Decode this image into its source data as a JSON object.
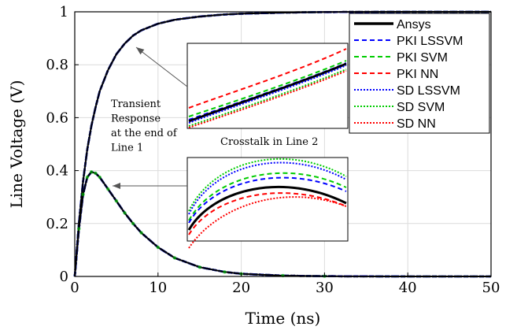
{
  "chart_data": {
    "type": "line",
    "title": "",
    "xlabel": "Time (ns)",
    "ylabel": "Line Voltage (V)",
    "xlim": [
      0,
      50
    ],
    "ylim": [
      0,
      1
    ],
    "xticks": [
      "0",
      "10",
      "20",
      "30",
      "40",
      "50"
    ],
    "yticks": [
      "0",
      "0.2",
      "0.4",
      "0.6",
      "0.8",
      "1"
    ],
    "grid": true,
    "legend_position": "top-right",
    "series": [
      {
        "name": "Ansys",
        "color": "#000000",
        "style": "solid",
        "width": 3
      },
      {
        "name": "PKI LSSVM",
        "color": "#0000ff",
        "style": "dashed",
        "width": 1.5
      },
      {
        "name": "PKI SVM",
        "color": "#00cc00",
        "style": "dashed",
        "width": 1.5
      },
      {
        "name": "PKI NN",
        "color": "#ff0000",
        "style": "dashed",
        "width": 1.5
      },
      {
        "name": "SD LSSVM",
        "color": "#0000ff",
        "style": "dotted",
        "width": 1.5
      },
      {
        "name": "SD SVM",
        "color": "#00cc00",
        "style": "dotted",
        "width": 1.5
      },
      {
        "name": "SD NN",
        "color": "#ff0000",
        "style": "dotted",
        "width": 1.5
      }
    ],
    "curves": {
      "line1_x": [
        0,
        0.5,
        1,
        1.5,
        2,
        2.5,
        3,
        4,
        5,
        6,
        7,
        8,
        10,
        12,
        15,
        18,
        20,
        25,
        30,
        40,
        50
      ],
      "line1_y": [
        0,
        0.2,
        0.36,
        0.48,
        0.57,
        0.64,
        0.7,
        0.78,
        0.84,
        0.88,
        0.91,
        0.93,
        0.955,
        0.97,
        0.982,
        0.99,
        0.993,
        0.997,
        0.999,
        1.0,
        1.0
      ],
      "line2_x": [
        0,
        0.5,
        1,
        1.5,
        2,
        2.5,
        3,
        4,
        5,
        6,
        7,
        8,
        10,
        12,
        15,
        18,
        20,
        25,
        30,
        40,
        50
      ],
      "line2_y": [
        0,
        0.18,
        0.31,
        0.375,
        0.395,
        0.39,
        0.375,
        0.33,
        0.285,
        0.24,
        0.2,
        0.165,
        0.11,
        0.07,
        0.035,
        0.017,
        0.01,
        0.003,
        0.001,
        0.0,
        0.0
      ]
    },
    "annotations": [
      {
        "id": "transient",
        "lines": [
          "Transient",
          "Response",
          "at the end of",
          "Line 1"
        ]
      },
      {
        "id": "crosstalk",
        "lines": [
          "Crosstalk in Line 2"
        ]
      }
    ]
  }
}
